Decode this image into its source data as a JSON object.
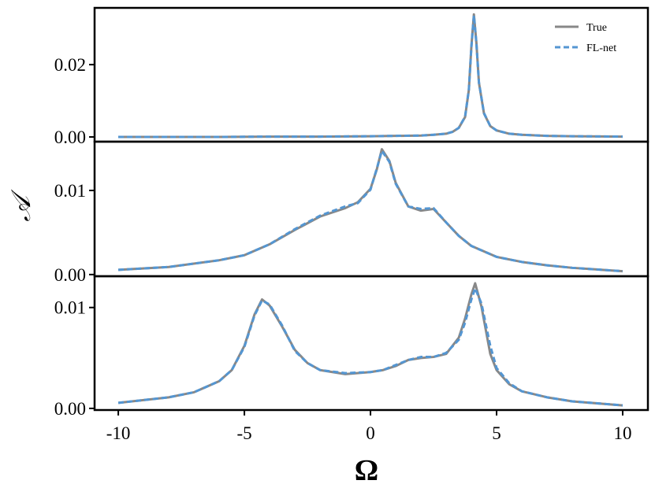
{
  "chart_data": [
    {
      "type": "line",
      "xlim": [
        -10.94,
        11
      ],
      "ylim": [
        -0.0013,
        0.0357
      ],
      "yticks": [
        {
          "value": 0,
          "label": "0.00"
        },
        0.02
      ],
      "legend": "upper right",
      "x": [
        -10,
        -8,
        -6,
        -4,
        -2,
        0,
        1,
        2,
        2.5,
        3,
        3.25,
        3.5,
        3.75,
        3.9,
        4,
        4.1,
        4.2,
        4.3,
        4.5,
        4.75,
        5,
        5.5,
        6,
        7,
        8,
        10
      ],
      "series": [
        {
          "name": "True",
          "color": "#888888",
          "linestyle": "solid",
          "values": [
            0.0,
            0.0,
            0.0,
            0.0001,
            0.0001,
            0.0002,
            0.0003,
            0.0004,
            0.0006,
            0.0009,
            0.0014,
            0.0025,
            0.0055,
            0.013,
            0.025,
            0.0339,
            0.026,
            0.015,
            0.0065,
            0.003,
            0.0018,
            0.0009,
            0.0006,
            0.0003,
            0.0002,
            0.0001
          ]
        },
        {
          "name": "FL-net",
          "color": "#5496d2",
          "linestyle": "dashed",
          "values": [
            0.0,
            0.0,
            0.0,
            0.0001,
            0.0001,
            0.0002,
            0.0003,
            0.0004,
            0.0006,
            0.0009,
            0.0014,
            0.0025,
            0.0056,
            0.0131,
            0.0248,
            0.0336,
            0.0259,
            0.0151,
            0.0066,
            0.003,
            0.0018,
            0.0009,
            0.0006,
            0.0003,
            0.0002,
            0.0001
          ]
        }
      ]
    },
    {
      "type": "line",
      "xlim": [
        -10.94,
        11
      ],
      "ylim": [
        -0.0002,
        0.0158
      ],
      "yticks": [
        {
          "value": 0,
          "label": "0.00"
        },
        0.01
      ],
      "ylabel": "𝒜",
      "x": [
        -10,
        -8,
        -6,
        -5,
        -4,
        -3,
        -2,
        -1,
        -0.5,
        0,
        0.25,
        0.45,
        0.75,
        1,
        1.5,
        2,
        2.5,
        3,
        3.5,
        4,
        5,
        6,
        7,
        8,
        10
      ],
      "series": [
        {
          "name": "True",
          "color": "#888888",
          "linestyle": "solid",
          "values": [
            0.00056,
            0.0009,
            0.0017,
            0.0023,
            0.0036,
            0.0053,
            0.0069,
            0.0079,
            0.0086,
            0.0102,
            0.0125,
            0.0149,
            0.0135,
            0.0109,
            0.0081,
            0.0076,
            0.0078,
            0.0062,
            0.0046,
            0.0034,
            0.0021,
            0.0015,
            0.0011,
            0.0008,
            0.0004
          ]
        },
        {
          "name": "FL-net",
          "color": "#5496d2",
          "linestyle": "dashed",
          "values": [
            0.00056,
            0.0009,
            0.0017,
            0.0023,
            0.0036,
            0.0054,
            0.007,
            0.0081,
            0.0085,
            0.0101,
            0.0126,
            0.0147,
            0.0134,
            0.0108,
            0.0081,
            0.0078,
            0.0079,
            0.0062,
            0.0046,
            0.0034,
            0.0021,
            0.0015,
            0.0011,
            0.0008,
            0.0004
          ]
        }
      ]
    },
    {
      "type": "line",
      "xlim": [
        -10.94,
        11
      ],
      "ylim": [
        -0.00016,
        0.0131
      ],
      "yticks": [
        {
          "value": 0,
          "label": "0.00"
        },
        0.01
      ],
      "xticks": [
        -10,
        -5,
        0,
        5,
        10
      ],
      "xlabel": "Ω",
      "x": [
        -10,
        -8,
        -7,
        -6,
        -5.5,
        -5,
        -4.6,
        -4.3,
        -4,
        -3.5,
        -3,
        -2.5,
        -2,
        -1,
        0,
        0.5,
        1,
        1.5,
        2,
        2.5,
        3,
        3.5,
        3.75,
        4,
        4.15,
        4.4,
        4.75,
        5,
        5.5,
        6,
        7,
        8,
        10
      ],
      "series": [
        {
          "name": "True",
          "color": "#888888",
          "linestyle": "solid",
          "values": [
            0.00055,
            0.0011,
            0.0016,
            0.0027,
            0.0038,
            0.0062,
            0.0093,
            0.0108,
            0.0102,
            0.0081,
            0.0058,
            0.0045,
            0.0038,
            0.0034,
            0.0036,
            0.0038,
            0.0042,
            0.0048,
            0.005,
            0.0051,
            0.0054,
            0.007,
            0.0089,
            0.0113,
            0.0124,
            0.0101,
            0.0054,
            0.0038,
            0.0024,
            0.0017,
            0.0011,
            0.0007,
            0.0003
          ]
        },
        {
          "name": "FL-net",
          "color": "#5496d2",
          "linestyle": "dashed",
          "values": [
            0.00055,
            0.0011,
            0.0016,
            0.0027,
            0.0038,
            0.0061,
            0.0092,
            0.0107,
            0.0103,
            0.0082,
            0.0057,
            0.0045,
            0.0038,
            0.0035,
            0.0036,
            0.0038,
            0.0043,
            0.0048,
            0.0051,
            0.0051,
            0.0055,
            0.0068,
            0.0085,
            0.0108,
            0.0119,
            0.0104,
            0.0062,
            0.004,
            0.0025,
            0.0017,
            0.0011,
            0.0007,
            0.0003
          ]
        }
      ]
    }
  ]
}
